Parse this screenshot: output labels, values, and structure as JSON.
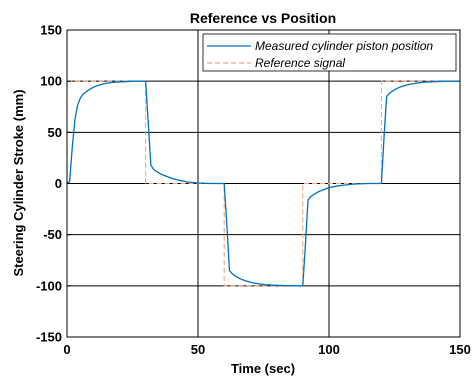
{
  "chart_data": {
    "type": "line",
    "title": "Reference vs Position",
    "xlabel": "Time (sec)",
    "ylabel": "Steering Cylinder Stroke (mm)",
    "xlim": [
      0,
      150
    ],
    "ylim": [
      -150,
      150
    ],
    "xticks": [
      0,
      50,
      100,
      150
    ],
    "yticks": [
      -150,
      -100,
      -50,
      0,
      50,
      100,
      150
    ],
    "xtick_labels": [
      "0",
      "50",
      "100",
      "150"
    ],
    "ytick_labels": [
      "-150",
      "-100",
      "-50",
      "0",
      "50",
      "100",
      "150"
    ],
    "grid": true,
    "legend_position": "top-right",
    "series": [
      {
        "name": "Measured cylinder piston position",
        "color": "#0072BD",
        "style": "solid",
        "x": [
          0,
          1,
          2,
          3,
          4,
          5,
          6,
          8,
          10,
          12,
          15,
          18,
          22,
          26,
          30,
          31,
          32,
          33,
          34,
          36,
          38,
          40,
          43,
          46,
          50,
          55,
          60,
          61,
          62,
          63,
          64,
          66,
          68,
          70,
          73,
          76,
          80,
          85,
          90,
          91,
          92,
          93,
          94,
          96,
          98,
          100,
          103,
          106,
          110,
          115,
          120,
          121,
          122,
          123,
          124,
          126,
          128,
          130,
          133,
          136,
          140,
          145,
          150
        ],
        "y": [
          0,
          2,
          35,
          62,
          76,
          83,
          87,
          91,
          94,
          96,
          98,
          99,
          99.5,
          100,
          100,
          60,
          18,
          14,
          12,
          9,
          7,
          5,
          3,
          1.5,
          0.5,
          0,
          0,
          -40,
          -85,
          -88,
          -90,
          -93,
          -95,
          -96.5,
          -98,
          -99,
          -99.5,
          -100,
          -100,
          -60,
          -16,
          -13,
          -11,
          -8,
          -6,
          -4,
          -2.5,
          -1.5,
          -0.5,
          0,
          0,
          45,
          85,
          88,
          90,
          93,
          95,
          96.5,
          98,
          99,
          99.5,
          100,
          100
        ]
      },
      {
        "name": "Reference signal",
        "color": "#F4A582",
        "style": "dashed",
        "x": [
          0,
          30,
          30,
          60,
          60,
          90,
          90,
          120,
          120,
          150
        ],
        "y": [
          100,
          100,
          0,
          0,
          -100,
          -100,
          0,
          0,
          100,
          100
        ]
      }
    ]
  }
}
